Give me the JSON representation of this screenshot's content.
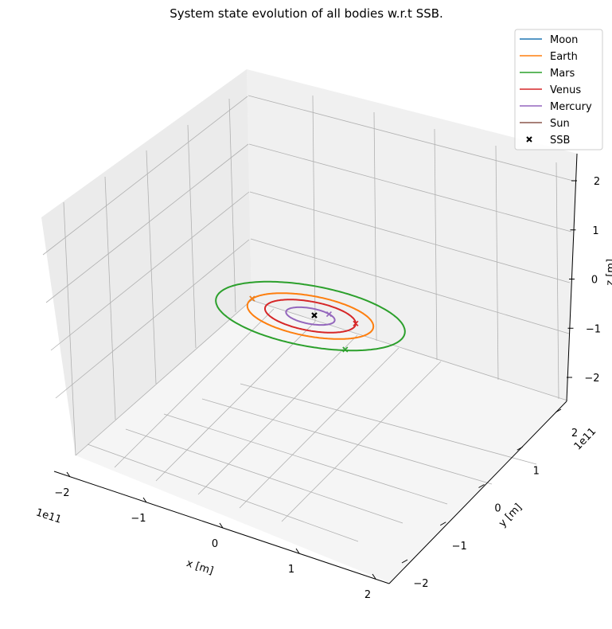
{
  "chart_data": {
    "type": "line",
    "title": "System state evolution of all bodies w.r.t SSB.",
    "xlabel": "x [m]",
    "ylabel": "y [m]",
    "zlabel": "z [m]",
    "x_offset_text": "1e11",
    "y_offset_text": "1e11",
    "x_ticks": [
      "−2",
      "−1",
      "0",
      "1",
      "2"
    ],
    "y_ticks": [
      "−2",
      "−1",
      "0",
      "1",
      "2"
    ],
    "z_ticks": [
      "2",
      "1",
      "0",
      "−1",
      "−2"
    ],
    "xlim": [
      -2.5,
      2.5
    ],
    "ylim": [
      -2.5,
      2.5
    ],
    "zlim": [
      -2.5,
      2.5
    ],
    "grid": true,
    "legend_position": "top-right",
    "series": [
      {
        "name": "Moon",
        "color": "#1f77b4",
        "orbit_radius": 1.5,
        "end_marker": [
          -1.5,
          0.05
        ]
      },
      {
        "name": "Earth",
        "color": "#ff7f0e",
        "orbit_radius": 1.5,
        "end_marker": [
          -1.5,
          0.05
        ]
      },
      {
        "name": "Mars",
        "color": "#2ca02c",
        "orbit_radius": 2.25,
        "end_marker": [
          1.6,
          1.5
        ]
      },
      {
        "name": "Venus",
        "color": "#d62728",
        "orbit_radius": 1.08,
        "end_marker": [
          0.98,
          -0.45
        ]
      },
      {
        "name": "Mercury",
        "color": "#9467bd",
        "orbit_radius": 0.58,
        "end_marker": [
          0.25,
          -0.52
        ]
      },
      {
        "name": "Sun",
        "color": "#8c564b",
        "orbit_radius": 0.0,
        "end_marker": [
          0,
          0
        ]
      }
    ],
    "ssb": {
      "name": "SSB",
      "color": "#000000",
      "point": [
        0,
        0,
        0
      ]
    }
  }
}
